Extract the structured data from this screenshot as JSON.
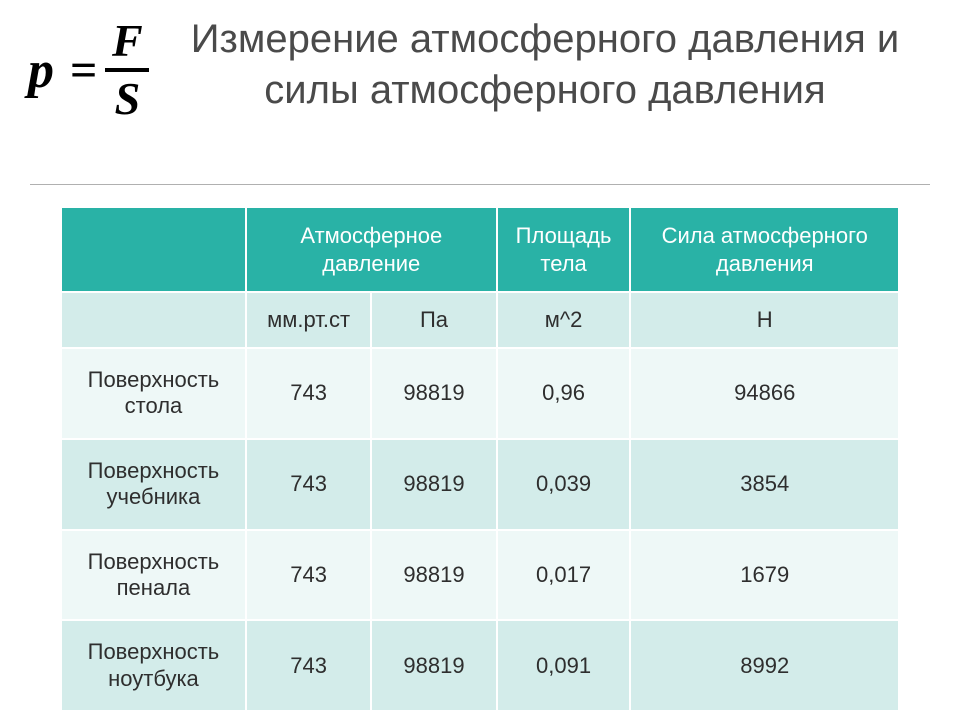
{
  "formula": {
    "lhs": "p",
    "eq": "=",
    "numerator": "F",
    "denominator": "S"
  },
  "title": "Измерение атмосферного давления и силы атмосферного давления",
  "table": {
    "header": {
      "blank": "",
      "pressure": "Атмосферное давление",
      "area": "Площадь тела",
      "force": "Сила атмосферного давления"
    },
    "units": {
      "blank": "",
      "mmhg": "мм.рт.ст",
      "pa": "Па",
      "m2": "м^2",
      "newton": "Н"
    },
    "rows": [
      {
        "label": "Поверхность стола",
        "mmhg": "743",
        "pa": "98819",
        "area": "0,96",
        "force": "94866"
      },
      {
        "label": "Поверхность учебника",
        "mmhg": "743",
        "pa": "98819",
        "area": "0,039",
        "force": "3854"
      },
      {
        "label": "Поверхность пенала",
        "mmhg": "743",
        "pa": "98819",
        "area": "0,017",
        "force": "1679"
      },
      {
        "label": "Поверхность ноутбука",
        "mmhg": "743",
        "pa": "98819",
        "area": "0,091",
        "force": "8992"
      }
    ]
  },
  "style": {
    "colors": {
      "header_bg": "#29b2a6",
      "header_text": "#ffffff",
      "units_bg": "#d3ecea",
      "band_a": "#eef8f7",
      "band_b": "#d3ecea",
      "cell_border": "#ffffff",
      "title_text": "#4a4a4a",
      "cell_text": "#2e2e2e",
      "page_bg": "#ffffff",
      "underline": "#b0b0b0"
    },
    "fontsize": {
      "title": 40,
      "cell": 22,
      "formula": 52
    },
    "column_widths_pct": [
      22,
      15,
      15,
      16,
      32
    ]
  }
}
